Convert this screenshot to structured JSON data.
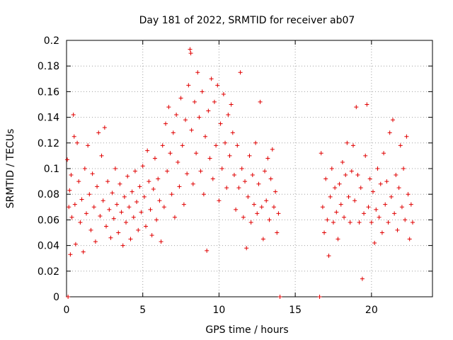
{
  "chart_data": {
    "type": "scatter",
    "title": "Day 181 of 2022, SRMTID for receiver ab07",
    "xlabel": "GPS time / hours",
    "ylabel": "SRMTID / TECUs",
    "xlim": [
      0,
      24
    ],
    "ylim": [
      0,
      0.2
    ],
    "xticks": [
      0,
      5,
      10,
      15,
      20
    ],
    "xtick_labels": [
      "0",
      "5",
      "10",
      "15",
      "20"
    ],
    "yticks": [
      0,
      0.02,
      0.04,
      0.06,
      0.08,
      0.1,
      0.12,
      0.14,
      0.16,
      0.18,
      0.2
    ],
    "ytick_labels": [
      "0",
      "0.02",
      "0.04",
      "0.06",
      "0.08",
      "0.1",
      "0.12",
      "0.14",
      "0.16",
      "0.18",
      "0.2"
    ],
    "grid": true,
    "marker": "+",
    "color": "#e00000",
    "series": [
      {
        "name": "SRMTID",
        "points": [
          [
            0.05,
            0.107
          ],
          [
            0.1,
            0.0
          ],
          [
            0.15,
            0.07
          ],
          [
            0.2,
            0.083
          ],
          [
            0.25,
            0.033
          ],
          [
            0.3,
            0.095
          ],
          [
            0.35,
            0.062
          ],
          [
            0.45,
            0.142
          ],
          [
            0.5,
            0.125
          ],
          [
            0.55,
            0.072
          ],
          [
            0.6,
            0.041
          ],
          [
            0.7,
            0.12
          ],
          [
            0.8,
            0.09
          ],
          [
            0.9,
            0.058
          ],
          [
            1.0,
            0.076
          ],
          [
            1.1,
            0.035
          ],
          [
            1.2,
            0.1
          ],
          [
            1.3,
            0.065
          ],
          [
            1.4,
            0.118
          ],
          [
            1.5,
            0.08
          ],
          [
            1.6,
            0.052
          ],
          [
            1.7,
            0.096
          ],
          [
            1.8,
            0.07
          ],
          [
            1.9,
            0.043
          ],
          [
            2.0,
            0.086
          ],
          [
            2.1,
            0.128
          ],
          [
            2.2,
            0.063
          ],
          [
            2.3,
            0.11
          ],
          [
            2.4,
            0.075
          ],
          [
            2.5,
            0.132
          ],
          [
            2.6,
            0.055
          ],
          [
            2.7,
            0.09
          ],
          [
            2.8,
            0.068
          ],
          [
            2.9,
            0.046
          ],
          [
            3.0,
            0.081
          ],
          [
            3.1,
            0.061
          ],
          [
            3.2,
            0.1
          ],
          [
            3.3,
            0.072
          ],
          [
            3.4,
            0.05
          ],
          [
            3.5,
            0.088
          ],
          [
            3.6,
            0.066
          ],
          [
            3.7,
            0.04
          ],
          [
            3.8,
            0.078
          ],
          [
            3.9,
            0.058
          ],
          [
            4.0,
            0.094
          ],
          [
            4.1,
            0.07
          ],
          [
            4.2,
            0.045
          ],
          [
            4.3,
            0.082
          ],
          [
            4.4,
            0.062
          ],
          [
            4.5,
            0.098
          ],
          [
            4.6,
            0.074
          ],
          [
            4.7,
            0.052
          ],
          [
            4.8,
            0.086
          ],
          [
            4.9,
            0.066
          ],
          [
            5.0,
            0.102
          ],
          [
            5.1,
            0.078
          ],
          [
            5.2,
            0.055
          ],
          [
            5.3,
            0.114
          ],
          [
            5.4,
            0.09
          ],
          [
            5.5,
            0.068
          ],
          [
            5.6,
            0.048
          ],
          [
            5.7,
            0.084
          ],
          [
            5.8,
            0.108
          ],
          [
            5.9,
            0.06
          ],
          [
            6.0,
            0.092
          ],
          [
            6.1,
            0.075
          ],
          [
            6.2,
            0.043
          ],
          [
            6.3,
            0.118
          ],
          [
            6.4,
            0.07
          ],
          [
            6.5,
            0.135
          ],
          [
            6.6,
            0.098
          ],
          [
            6.7,
            0.148
          ],
          [
            6.8,
            0.112
          ],
          [
            6.9,
            0.08
          ],
          [
            7.0,
            0.128
          ],
          [
            7.1,
            0.062
          ],
          [
            7.2,
            0.142
          ],
          [
            7.3,
            0.105
          ],
          [
            7.4,
            0.086
          ],
          [
            7.5,
            0.155
          ],
          [
            7.6,
            0.118
          ],
          [
            7.7,
            0.072
          ],
          [
            7.8,
            0.138
          ],
          [
            7.9,
            0.096
          ],
          [
            8.0,
            0.165
          ],
          [
            8.1,
            0.193
          ],
          [
            8.15,
            0.19
          ],
          [
            8.2,
            0.13
          ],
          [
            8.3,
            0.088
          ],
          [
            8.4,
            0.152
          ],
          [
            8.5,
            0.112
          ],
          [
            8.6,
            0.175
          ],
          [
            8.7,
            0.14
          ],
          [
            8.8,
            0.098
          ],
          [
            8.9,
            0.16
          ],
          [
            9.0,
            0.08
          ],
          [
            9.1,
            0.125
          ],
          [
            9.2,
            0.036
          ],
          [
            9.3,
            0.145
          ],
          [
            9.4,
            0.108
          ],
          [
            9.5,
            0.17
          ],
          [
            9.6,
            0.092
          ],
          [
            9.7,
            0.152
          ],
          [
            9.8,
            0.118
          ],
          [
            9.9,
            0.165
          ],
          [
            10.0,
            0.075
          ],
          [
            10.1,
            0.135
          ],
          [
            10.2,
            0.1
          ],
          [
            10.3,
            0.158
          ],
          [
            10.4,
            0.12
          ],
          [
            10.5,
            0.085
          ],
          [
            10.6,
            0.142
          ],
          [
            10.7,
            0.11
          ],
          [
            10.8,
            0.15
          ],
          [
            10.9,
            0.128
          ],
          [
            11.0,
            0.095
          ],
          [
            11.1,
            0.068
          ],
          [
            11.2,
            0.118
          ],
          [
            11.3,
            0.085
          ],
          [
            11.4,
            0.175
          ],
          [
            11.5,
            0.1
          ],
          [
            11.6,
            0.062
          ],
          [
            11.7,
            0.09
          ],
          [
            11.8,
            0.038
          ],
          [
            11.9,
            0.078
          ],
          [
            12.0,
            0.11
          ],
          [
            12.1,
            0.058
          ],
          [
            12.2,
            0.095
          ],
          [
            12.3,
            0.072
          ],
          [
            12.4,
            0.12
          ],
          [
            12.5,
            0.065
          ],
          [
            12.6,
            0.088
          ],
          [
            12.7,
            0.152
          ],
          [
            12.8,
            0.07
          ],
          [
            12.9,
            0.045
          ],
          [
            13.0,
            0.098
          ],
          [
            13.1,
            0.075
          ],
          [
            13.2,
            0.108
          ],
          [
            13.3,
            0.06
          ],
          [
            13.4,
            0.092
          ],
          [
            13.5,
            0.115
          ],
          [
            13.6,
            0.07
          ],
          [
            13.7,
            0.082
          ],
          [
            13.8,
            0.05
          ],
          [
            13.9,
            0.065
          ],
          [
            14.0,
            0.0
          ],
          [
            16.6,
            0.0
          ],
          [
            16.7,
            0.112
          ],
          [
            16.8,
            0.07
          ],
          [
            16.9,
            0.05
          ],
          [
            17.0,
            0.092
          ],
          [
            17.1,
            0.06
          ],
          [
            17.2,
            0.032
          ],
          [
            17.3,
            0.078
          ],
          [
            17.4,
            0.1
          ],
          [
            17.5,
            0.058
          ],
          [
            17.6,
            0.085
          ],
          [
            17.7,
            0.066
          ],
          [
            17.8,
            0.045
          ],
          [
            17.9,
            0.088
          ],
          [
            18.0,
            0.072
          ],
          [
            18.1,
            0.105
          ],
          [
            18.2,
            0.062
          ],
          [
            18.3,
            0.095
          ],
          [
            18.4,
            0.12
          ],
          [
            18.5,
            0.078
          ],
          [
            18.6,
            0.058
          ],
          [
            18.7,
            0.098
          ],
          [
            18.8,
            0.118
          ],
          [
            18.9,
            0.075
          ],
          [
            19.0,
            0.148
          ],
          [
            19.1,
            0.095
          ],
          [
            19.2,
            0.058
          ],
          [
            19.3,
            0.085
          ],
          [
            19.4,
            0.014
          ],
          [
            19.5,
            0.065
          ],
          [
            19.6,
            0.11
          ],
          [
            19.7,
            0.15
          ],
          [
            19.8,
            0.07
          ],
          [
            19.9,
            0.092
          ],
          [
            20.0,
            0.058
          ],
          [
            20.1,
            0.082
          ],
          [
            20.2,
            0.042
          ],
          [
            20.3,
            0.068
          ],
          [
            20.4,
            0.1
          ],
          [
            20.5,
            0.062
          ],
          [
            20.6,
            0.088
          ],
          [
            20.7,
            0.05
          ],
          [
            20.8,
            0.112
          ],
          [
            20.9,
            0.072
          ],
          [
            21.0,
            0.09
          ],
          [
            21.1,
            0.058
          ],
          [
            21.2,
            0.128
          ],
          [
            21.3,
            0.078
          ],
          [
            21.4,
            0.138
          ],
          [
            21.5,
            0.065
          ],
          [
            21.6,
            0.095
          ],
          [
            21.7,
            0.052
          ],
          [
            21.8,
            0.085
          ],
          [
            21.9,
            0.118
          ],
          [
            22.0,
            0.07
          ],
          [
            22.1,
            0.1
          ],
          [
            22.2,
            0.06
          ],
          [
            22.3,
            0.125
          ],
          [
            22.4,
            0.08
          ],
          [
            22.5,
            0.045
          ],
          [
            22.6,
            0.072
          ],
          [
            22.7,
            0.058
          ]
        ]
      }
    ]
  }
}
